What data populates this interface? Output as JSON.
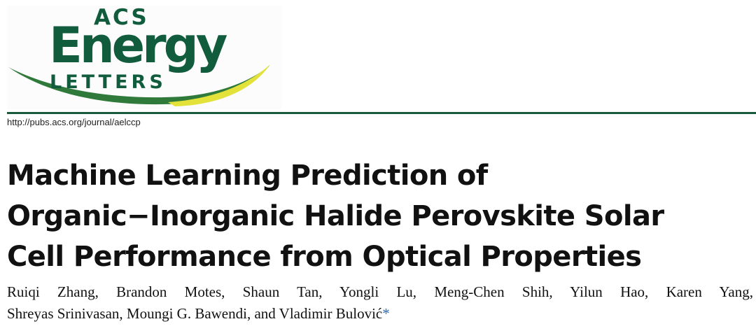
{
  "logo": {
    "acs": "ACS",
    "energy": "Energy",
    "letters": "LETTERS"
  },
  "journal_url": "http://pubs.acs.org/journal/aelccp",
  "title_lines": [
    "Machine Learning Prediction of",
    "Organic−Inorganic Halide Perovskite Solar",
    "Cell Performance from Optical Properties"
  ],
  "authors": {
    "line1": "Ruiqi Zhang, Brandon Motes, Shaun Tan, Yongli Lu, Meng-Chen Shih, Yilun Hao, Karen Yang,",
    "line2": "Shreyas Srinivasan, Moungi G. Bawendi, and Vladimir Bulović",
    "corresponding_mark": "*"
  },
  "colors": {
    "brand_green": "#125c3e",
    "swoosh_yellow": "#e2e23a",
    "rule": "#1a5a3c",
    "link_blue": "#2b6cb0"
  }
}
